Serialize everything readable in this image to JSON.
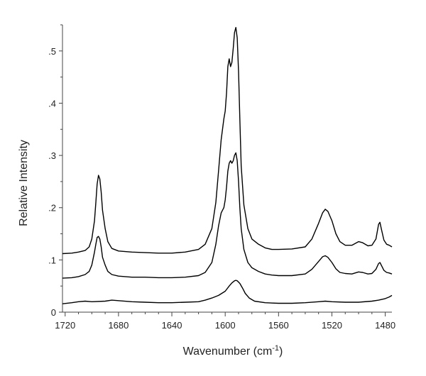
{
  "chart_data": {
    "type": "line",
    "xlabel": "Wavenumber (cm",
    "xlabel_superscript": "-1",
    "xlabel_suffix": ")",
    "ylabel": "Relative Intensity",
    "xlim": [
      1722,
      1475
    ],
    "ylim": [
      0,
      0.55
    ],
    "x_ticks": [
      1720,
      1680,
      1640,
      1600,
      1560,
      1520,
      1480
    ],
    "x_tick_labels": [
      "1720",
      "1680",
      "1640",
      "1600",
      "1560",
      "1520",
      "1480"
    ],
    "y_ticks": [
      0,
      0.1,
      0.2,
      0.3,
      0.4,
      0.5
    ],
    "y_tick_labels": [
      "0",
      ".1",
      ".2",
      ".3",
      ".4",
      ".5"
    ],
    "grid": false,
    "series": [
      {
        "points": [
          [
            1722,
            0.112
          ],
          [
            1715,
            0.113
          ],
          [
            1710,
            0.115
          ],
          [
            1705,
            0.118
          ],
          [
            1702,
            0.125
          ],
          [
            1700,
            0.14
          ],
          [
            1698,
            0.175
          ],
          [
            1697,
            0.21
          ],
          [
            1696,
            0.245
          ],
          [
            1695,
            0.262
          ],
          [
            1694,
            0.255
          ],
          [
            1693,
            0.23
          ],
          [
            1692,
            0.195
          ],
          [
            1690,
            0.16
          ],
          [
            1688,
            0.135
          ],
          [
            1685,
            0.122
          ],
          [
            1680,
            0.117
          ],
          [
            1670,
            0.115
          ],
          [
            1660,
            0.114
          ],
          [
            1650,
            0.113
          ],
          [
            1640,
            0.113
          ],
          [
            1630,
            0.115
          ],
          [
            1620,
            0.12
          ],
          [
            1615,
            0.13
          ],
          [
            1610,
            0.16
          ],
          [
            1607,
            0.21
          ],
          [
            1605,
            0.27
          ],
          [
            1603,
            0.33
          ],
          [
            1601,
            0.37
          ],
          [
            1600,
            0.385
          ],
          [
            1599,
            0.42
          ],
          [
            1598,
            0.47
          ],
          [
            1597,
            0.485
          ],
          [
            1596,
            0.47
          ],
          [
            1595,
            0.478
          ],
          [
            1594,
            0.505
          ],
          [
            1593,
            0.535
          ],
          [
            1592,
            0.545
          ],
          [
            1591,
            0.525
          ],
          [
            1590,
            0.46
          ],
          [
            1589,
            0.37
          ],
          [
            1588,
            0.28
          ],
          [
            1586,
            0.205
          ],
          [
            1583,
            0.16
          ],
          [
            1580,
            0.14
          ],
          [
            1575,
            0.13
          ],
          [
            1570,
            0.123
          ],
          [
            1565,
            0.12
          ],
          [
            1560,
            0.12
          ],
          [
            1550,
            0.121
          ],
          [
            1540,
            0.125
          ],
          [
            1535,
            0.14
          ],
          [
            1530,
            0.17
          ],
          [
            1527,
            0.19
          ],
          [
            1525,
            0.197
          ],
          [
            1523,
            0.193
          ],
          [
            1520,
            0.175
          ],
          [
            1517,
            0.15
          ],
          [
            1514,
            0.135
          ],
          [
            1510,
            0.128
          ],
          [
            1505,
            0.128
          ],
          [
            1500,
            0.135
          ],
          [
            1497,
            0.133
          ],
          [
            1493,
            0.127
          ],
          [
            1490,
            0.128
          ],
          [
            1487,
            0.14
          ],
          [
            1485,
            0.168
          ],
          [
            1484,
            0.172
          ],
          [
            1483,
            0.16
          ],
          [
            1481,
            0.138
          ],
          [
            1479,
            0.13
          ],
          [
            1477,
            0.128
          ],
          [
            1475,
            0.125
          ]
        ]
      },
      {
        "points": [
          [
            1722,
            0.065
          ],
          [
            1715,
            0.066
          ],
          [
            1710,
            0.068
          ],
          [
            1705,
            0.072
          ],
          [
            1702,
            0.078
          ],
          [
            1700,
            0.09
          ],
          [
            1698,
            0.115
          ],
          [
            1697,
            0.13
          ],
          [
            1696,
            0.143
          ],
          [
            1695,
            0.145
          ],
          [
            1694,
            0.14
          ],
          [
            1693,
            0.125
          ],
          [
            1692,
            0.105
          ],
          [
            1690,
            0.09
          ],
          [
            1688,
            0.078
          ],
          [
            1685,
            0.072
          ],
          [
            1680,
            0.069
          ],
          [
            1670,
            0.067
          ],
          [
            1660,
            0.067
          ],
          [
            1650,
            0.066
          ],
          [
            1640,
            0.066
          ],
          [
            1630,
            0.067
          ],
          [
            1620,
            0.07
          ],
          [
            1615,
            0.076
          ],
          [
            1610,
            0.095
          ],
          [
            1607,
            0.13
          ],
          [
            1605,
            0.165
          ],
          [
            1603,
            0.19
          ],
          [
            1601,
            0.2
          ],
          [
            1600,
            0.215
          ],
          [
            1599,
            0.24
          ],
          [
            1598,
            0.27
          ],
          [
            1597,
            0.285
          ],
          [
            1596,
            0.29
          ],
          [
            1595,
            0.285
          ],
          [
            1594,
            0.29
          ],
          [
            1593,
            0.3
          ],
          [
            1592,
            0.305
          ],
          [
            1591,
            0.29
          ],
          [
            1590,
            0.25
          ],
          [
            1589,
            0.2
          ],
          [
            1588,
            0.16
          ],
          [
            1586,
            0.12
          ],
          [
            1583,
            0.095
          ],
          [
            1580,
            0.085
          ],
          [
            1575,
            0.078
          ],
          [
            1570,
            0.073
          ],
          [
            1565,
            0.071
          ],
          [
            1560,
            0.07
          ],
          [
            1550,
            0.07
          ],
          [
            1540,
            0.073
          ],
          [
            1535,
            0.082
          ],
          [
            1530,
            0.097
          ],
          [
            1527,
            0.106
          ],
          [
            1525,
            0.108
          ],
          [
            1523,
            0.105
          ],
          [
            1520,
            0.095
          ],
          [
            1517,
            0.083
          ],
          [
            1514,
            0.076
          ],
          [
            1510,
            0.074
          ],
          [
            1505,
            0.073
          ],
          [
            1500,
            0.077
          ],
          [
            1497,
            0.076
          ],
          [
            1493,
            0.073
          ],
          [
            1490,
            0.074
          ],
          [
            1487,
            0.082
          ],
          [
            1485,
            0.093
          ],
          [
            1484,
            0.095
          ],
          [
            1483,
            0.09
          ],
          [
            1481,
            0.08
          ],
          [
            1479,
            0.076
          ],
          [
            1477,
            0.075
          ],
          [
            1475,
            0.073
          ]
        ]
      },
      {
        "points": [
          [
            1722,
            0.016
          ],
          [
            1715,
            0.018
          ],
          [
            1710,
            0.02
          ],
          [
            1705,
            0.021
          ],
          [
            1700,
            0.02
          ],
          [
            1690,
            0.021
          ],
          [
            1685,
            0.023
          ],
          [
            1680,
            0.022
          ],
          [
            1670,
            0.02
          ],
          [
            1660,
            0.019
          ],
          [
            1650,
            0.018
          ],
          [
            1640,
            0.018
          ],
          [
            1630,
            0.019
          ],
          [
            1620,
            0.02
          ],
          [
            1615,
            0.023
          ],
          [
            1610,
            0.027
          ],
          [
            1605,
            0.032
          ],
          [
            1600,
            0.04
          ],
          [
            1597,
            0.05
          ],
          [
            1595,
            0.056
          ],
          [
            1593,
            0.06
          ],
          [
            1592,
            0.061
          ],
          [
            1591,
            0.06
          ],
          [
            1589,
            0.055
          ],
          [
            1587,
            0.046
          ],
          [
            1585,
            0.036
          ],
          [
            1582,
            0.027
          ],
          [
            1578,
            0.021
          ],
          [
            1570,
            0.018
          ],
          [
            1560,
            0.017
          ],
          [
            1550,
            0.017
          ],
          [
            1540,
            0.018
          ],
          [
            1530,
            0.02
          ],
          [
            1525,
            0.021
          ],
          [
            1520,
            0.02
          ],
          [
            1510,
            0.019
          ],
          [
            1500,
            0.019
          ],
          [
            1490,
            0.021
          ],
          [
            1485,
            0.023
          ],
          [
            1480,
            0.026
          ],
          [
            1477,
            0.029
          ],
          [
            1475,
            0.032
          ]
        ]
      }
    ]
  }
}
